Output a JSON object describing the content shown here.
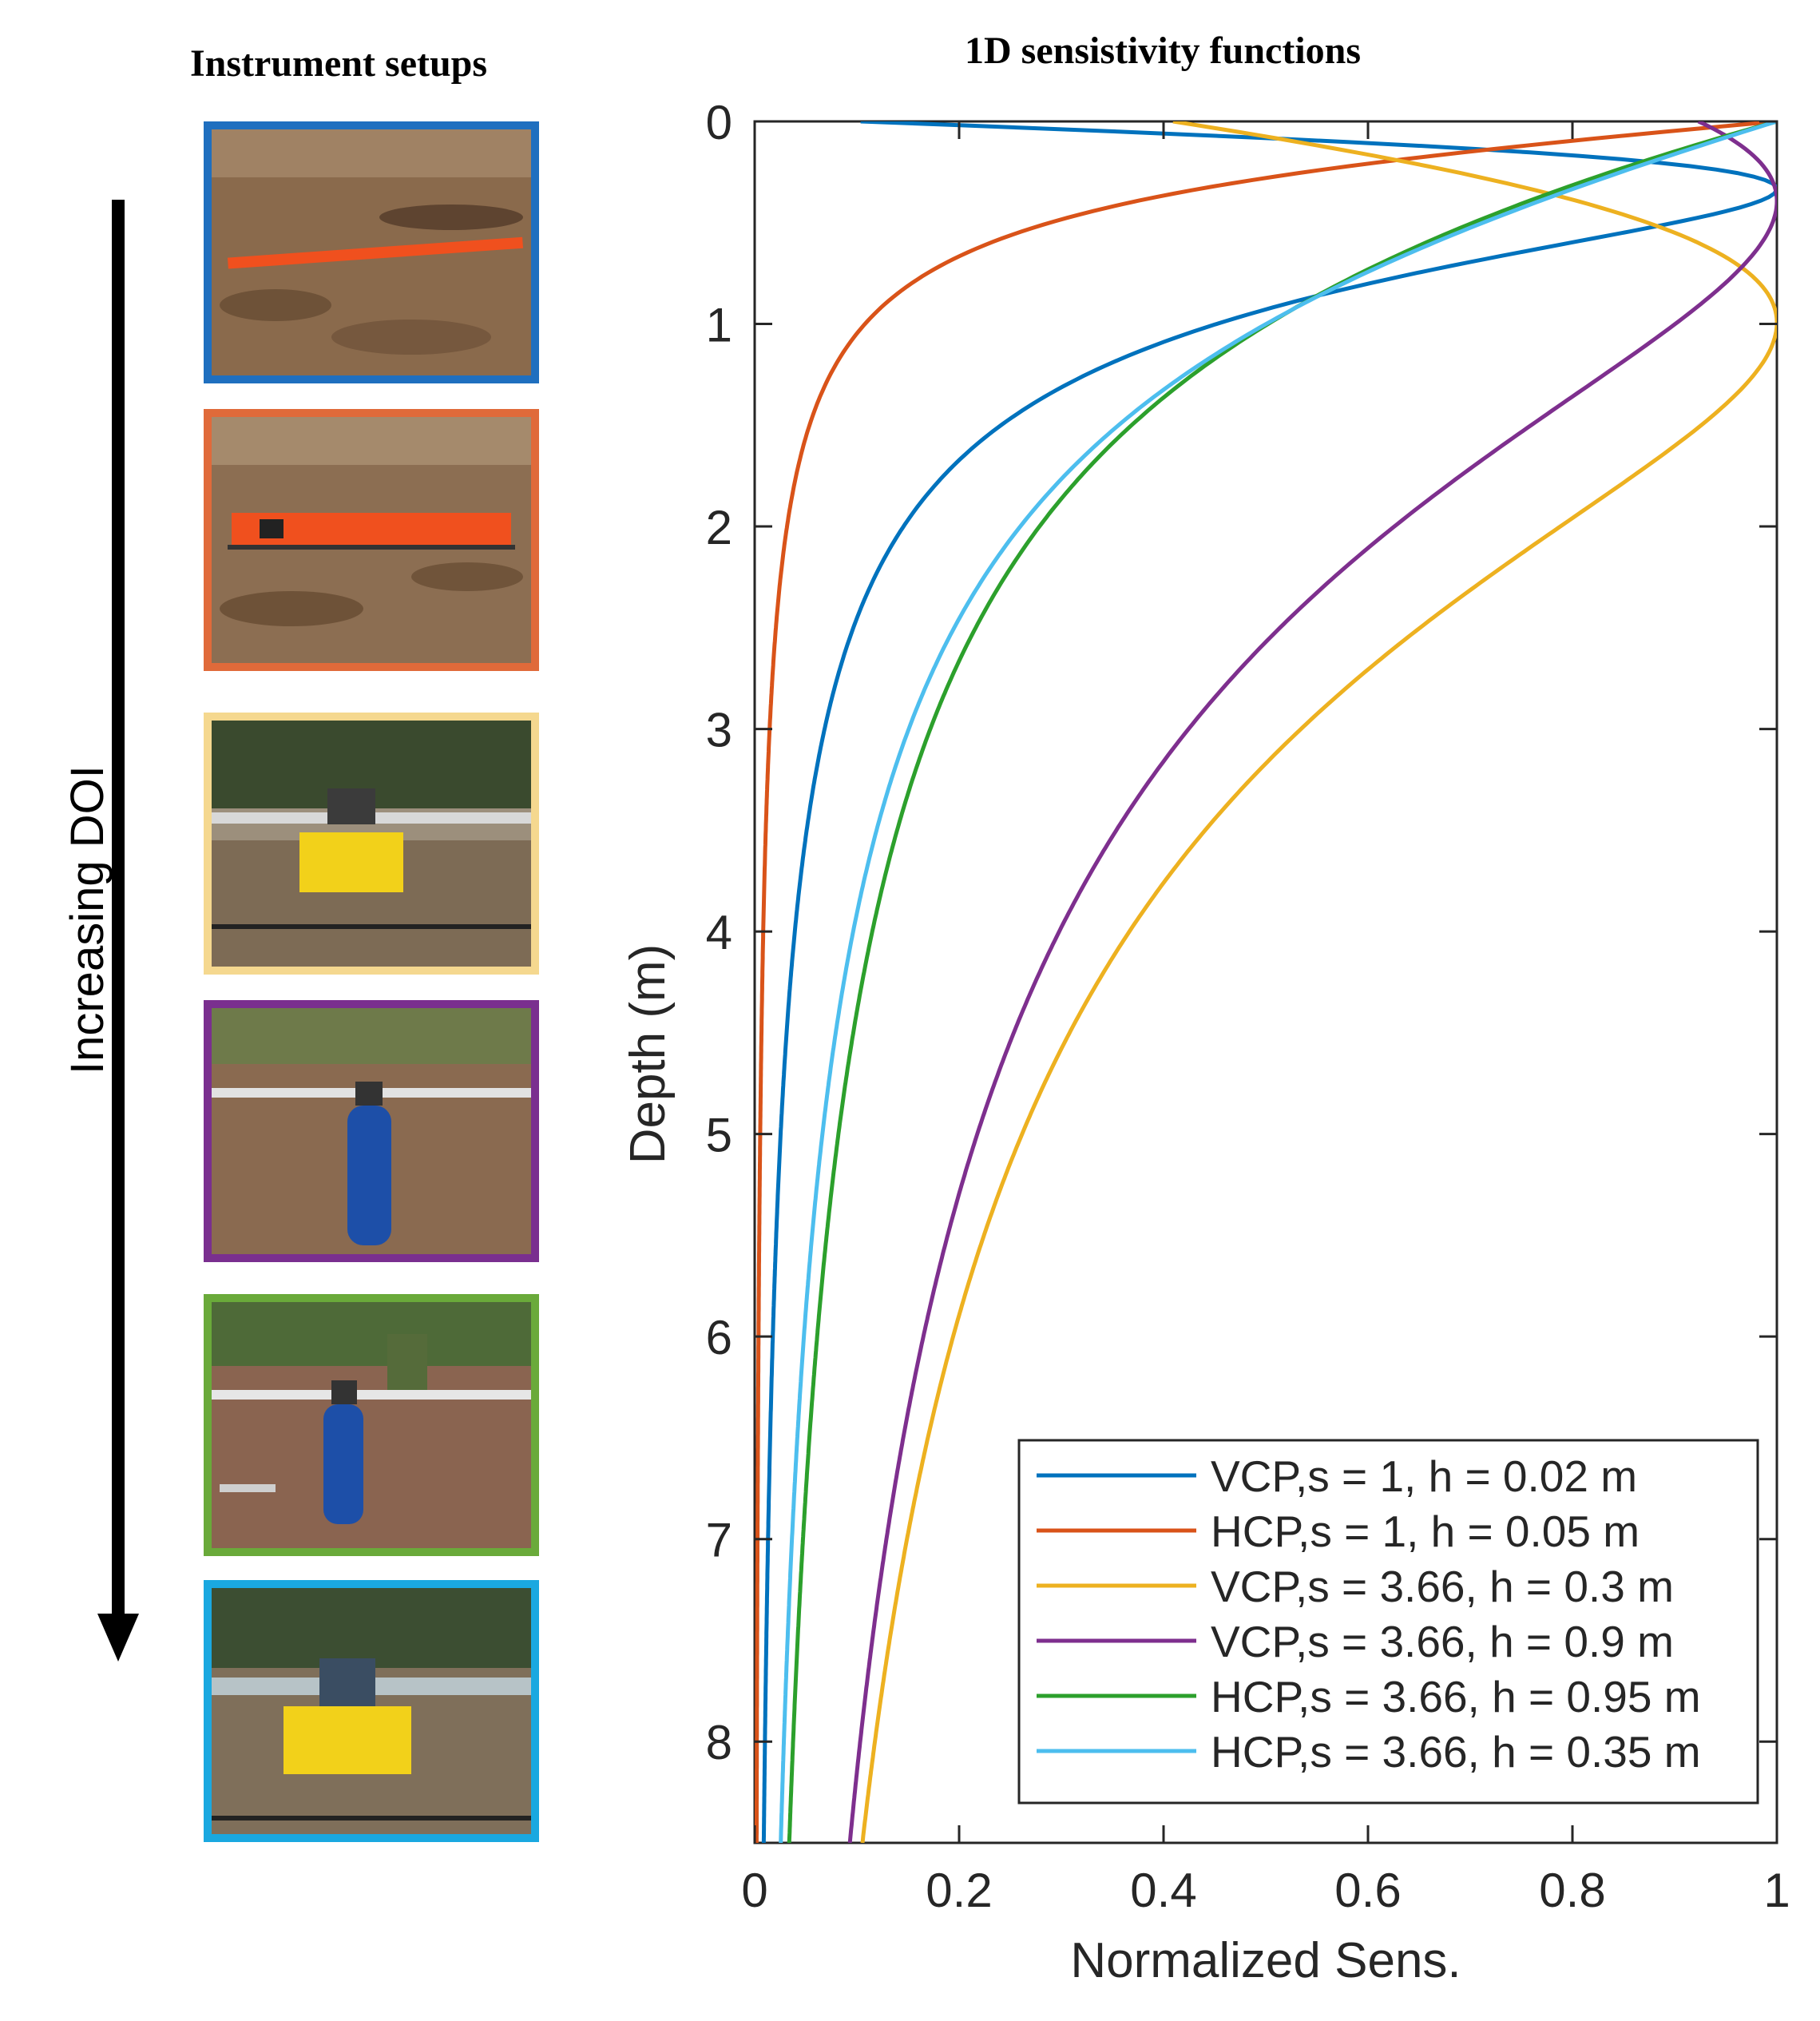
{
  "left_panel": {
    "title": "Instrument setups",
    "arrow_label": "Increasing DOI",
    "photos": [
      {
        "name": "setup-photo-1",
        "border": "#1f6fbf",
        "scene": "field-ruler"
      },
      {
        "name": "setup-photo-2",
        "border": "#e06a3a",
        "scene": "field-box"
      },
      {
        "name": "setup-photo-3",
        "border": "#f5d88f",
        "scene": "crate-pole"
      },
      {
        "name": "setup-photo-4",
        "border": "#7a2f8f",
        "scene": "barrel-pole"
      },
      {
        "name": "setup-photo-5",
        "border": "#6aaa3a",
        "scene": "barrel-pole-2"
      },
      {
        "name": "setup-photo-6",
        "border": "#1aa8e0",
        "scene": "crate-pole-2"
      }
    ]
  },
  "chart_data": {
    "type": "line",
    "title": "1D sensistivity functions",
    "xlabel": "Normalized Sens.",
    "ylabel": "Depth (m)",
    "xlim": [
      0,
      1
    ],
    "ylim": [
      0,
      8.5
    ],
    "y_reversed": true,
    "x_ticks": [
      "0",
      "0.2",
      "0.4",
      "0.6",
      "0.8",
      "1"
    ],
    "y_ticks": [
      "0",
      "1",
      "2",
      "3",
      "4",
      "5",
      "6",
      "7",
      "8"
    ],
    "legend_position": "bottom-right",
    "grid": false,
    "series": [
      {
        "name": "VCP,s = 1, h = 0.02 m",
        "color": "#0072BD",
        "mode": "VCP",
        "s": 1,
        "h": 0.02
      },
      {
        "name": "HCP,s = 1, h = 0.05 m",
        "color": "#D95319",
        "mode": "HCP",
        "s": 1,
        "h": 0.05
      },
      {
        "name": "VCP,s = 3.66, h = 0.3 m",
        "color": "#EDB120",
        "mode": "VCP",
        "s": 3.66,
        "h": 0.3
      },
      {
        "name": "VCP,s = 3.66, h = 0.9 m",
        "color": "#7E2F8E",
        "mode": "VCP",
        "s": 3.66,
        "h": 0.9
      },
      {
        "name": "HCP,s = 3.66, h = 0.95 m",
        "color": "#2CA02C",
        "mode": "HCP",
        "s": 3.66,
        "h": 0.95
      },
      {
        "name": "HCP,s = 3.66, h = 0.35 m",
        "color": "#4DBEEE",
        "mode": "HCP",
        "s": 3.66,
        "h": 0.35
      }
    ]
  }
}
